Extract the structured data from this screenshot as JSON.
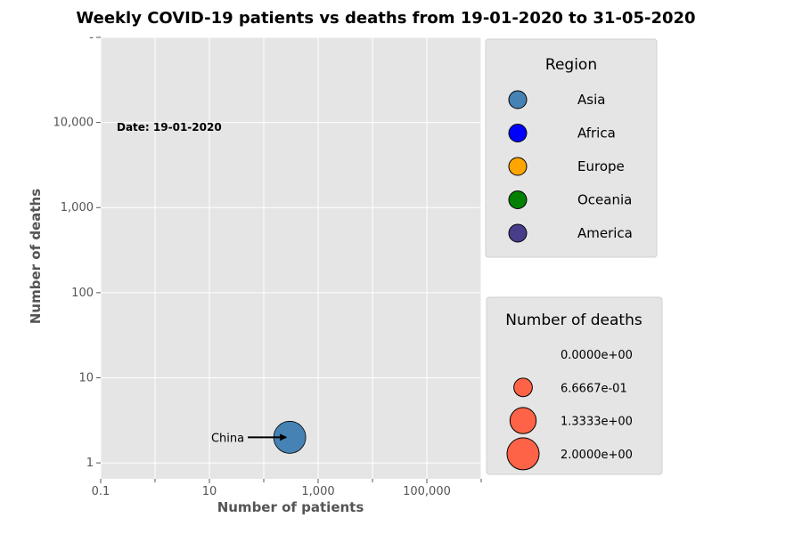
{
  "chart_data": {
    "type": "scatter",
    "title": "Weekly COVID-19 patients vs deaths from 19-01-2020 to 31-05-2020",
    "xlabel": "Number of patients",
    "ylabel": "Number of deaths",
    "xscale": "log",
    "yscale": "log",
    "xlim": [
      0.1,
      1000000
    ],
    "ylim": [
      0.65,
      100000
    ],
    "x_ticks": [
      {
        "value": 0.1,
        "label": "0.1"
      },
      {
        "value": 10,
        "label": "10"
      },
      {
        "value": 1000,
        "label": "1,000"
      },
      {
        "value": 100000,
        "label": "100,000"
      }
    ],
    "x_minor_ticks": [
      1,
      100,
      10000,
      1000000
    ],
    "y_ticks": [
      {
        "value": 1,
        "label": "1"
      },
      {
        "value": 10,
        "label": "10"
      },
      {
        "value": 100,
        "label": "100"
      },
      {
        "value": 1000,
        "label": "1,000"
      },
      {
        "value": 10000,
        "label": "10,000"
      },
      {
        "value": 100000,
        "label": "-"
      }
    ],
    "grid": true,
    "date_label": "Date: 19-01-2020",
    "points": [
      {
        "name": "China",
        "region": "Asia",
        "x": 300,
        "y": 2,
        "deaths": 2
      }
    ],
    "annotations": [
      {
        "text": "China",
        "target": "China"
      }
    ],
    "region_legend": {
      "title": "Region",
      "placement": "upper-right-outside",
      "entries": [
        {
          "label": "Asia",
          "color": "#4682b4"
        },
        {
          "label": "Africa",
          "color": "#0000ff"
        },
        {
          "label": "Europe",
          "color": "#ffa500"
        },
        {
          "label": "Oceania",
          "color": "#008000"
        },
        {
          "label": "America",
          "color": "#483d8b"
        }
      ]
    },
    "size_legend": {
      "title": "Number of deaths",
      "placement": "lower-right-outside",
      "color": "#ff6347",
      "entries": [
        {
          "label": "0.0000e+00",
          "value": 0
        },
        {
          "label": "6.6667e-01",
          "value": 0.66667
        },
        {
          "label": "1.3333e+00",
          "value": 1.33333
        },
        {
          "label": "2.0000e+00",
          "value": 2
        }
      ]
    },
    "colors": {
      "plot_background": "#e5e5e5",
      "grid": "#ffffff",
      "marker_edge": "#000000"
    }
  }
}
